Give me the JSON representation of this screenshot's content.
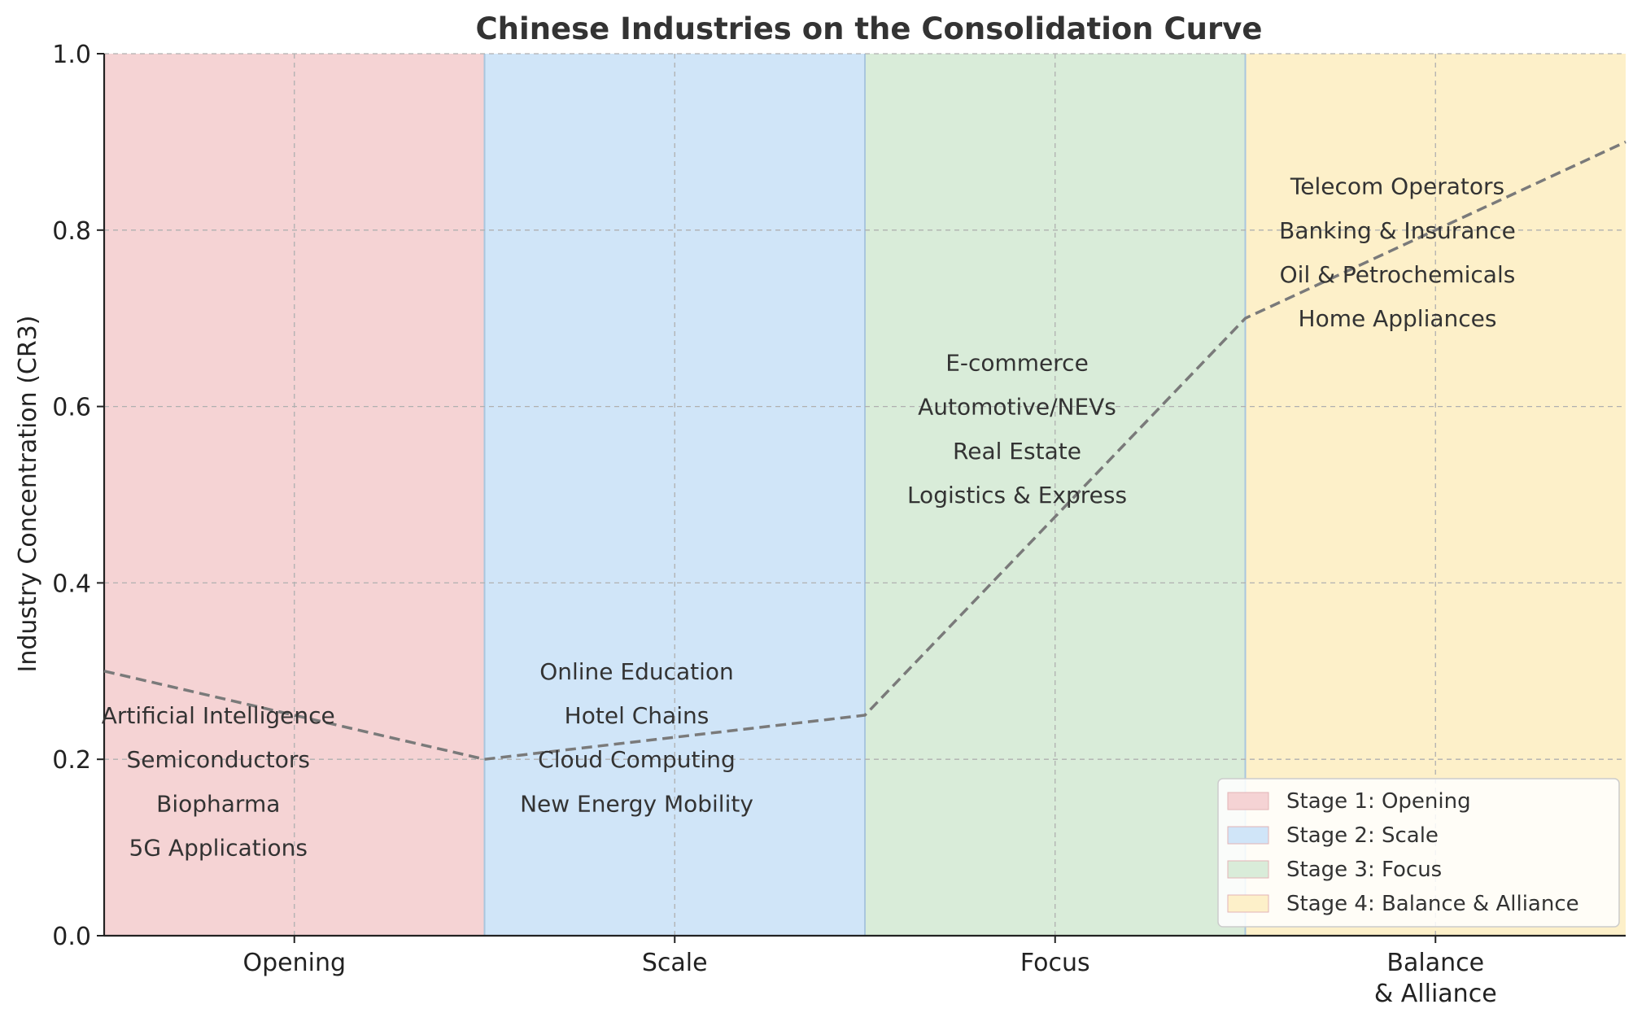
{
  "chart_data": {
    "type": "line",
    "title": "Chinese Industries on the Consolidation Curve",
    "xlabel": "",
    "ylabel": "Industry Concentration (CR3)",
    "xlim": [
      0,
      4
    ],
    "ylim": [
      0,
      1
    ],
    "yticks": [
      "0.0",
      "0.2",
      "0.4",
      "0.6",
      "0.8",
      "1.0"
    ],
    "ytick_values": [
      0,
      0.2,
      0.4,
      0.6,
      0.8,
      1.0
    ],
    "grid": true,
    "stages": [
      {
        "label_lines": [
          "Opening"
        ],
        "legend": "Stage 1: Opening",
        "color": "#f5d3d4",
        "x0": 0,
        "x1": 1,
        "center": 0.5
      },
      {
        "label_lines": [
          "Scale"
        ],
        "legend": "Stage 2: Scale",
        "color": "#d0e5f8",
        "x0": 1,
        "x1": 2,
        "center": 1.5
      },
      {
        "label_lines": [
          "Focus"
        ],
        "legend": "Stage 3: Focus",
        "color": "#d9ecd9",
        "x0": 2,
        "x1": 3,
        "center": 2.5
      },
      {
        "label_lines": [
          "Balance",
          "& Alliance"
        ],
        "legend": "Stage 4: Balance & Alliance",
        "color": "#fdf0c9",
        "x0": 3,
        "x1": 4,
        "center": 3.5
      }
    ],
    "curve": {
      "x": [
        0,
        0.5,
        1,
        1.5,
        2,
        2.5,
        3,
        3.5,
        4
      ],
      "y": [
        0.3,
        0.25,
        0.2,
        0.225,
        0.25,
        0.475,
        0.7,
        0.8,
        0.9
      ],
      "color": "#7a7a7a",
      "style": "dashed"
    },
    "annotations": [
      {
        "text": "Artificial Intelligence",
        "x": 0.3,
        "y": 0.25
      },
      {
        "text": "Semiconductors",
        "x": 0.3,
        "y": 0.2
      },
      {
        "text": "Biopharma",
        "x": 0.3,
        "y": 0.15
      },
      {
        "text": "5G Applications",
        "x": 0.3,
        "y": 0.1
      },
      {
        "text": "Online Education",
        "x": 1.4,
        "y": 0.3
      },
      {
        "text": "Hotel Chains",
        "x": 1.4,
        "y": 0.25
      },
      {
        "text": "Cloud Computing",
        "x": 1.4,
        "y": 0.2
      },
      {
        "text": "New Energy Mobility",
        "x": 1.4,
        "y": 0.15
      },
      {
        "text": "E-commerce",
        "x": 2.4,
        "y": 0.65
      },
      {
        "text": "Automotive/NEVs",
        "x": 2.4,
        "y": 0.6
      },
      {
        "text": "Real Estate",
        "x": 2.4,
        "y": 0.55
      },
      {
        "text": "Logistics & Express",
        "x": 2.4,
        "y": 0.5
      },
      {
        "text": "Telecom Operators",
        "x": 3.4,
        "y": 0.85
      },
      {
        "text": "Banking & Insurance",
        "x": 3.4,
        "y": 0.8
      },
      {
        "text": "Oil & Petrochemicals",
        "x": 3.4,
        "y": 0.75
      },
      {
        "text": "Home Appliances",
        "x": 3.4,
        "y": 0.7
      }
    ],
    "legend_position": "lower-right"
  }
}
